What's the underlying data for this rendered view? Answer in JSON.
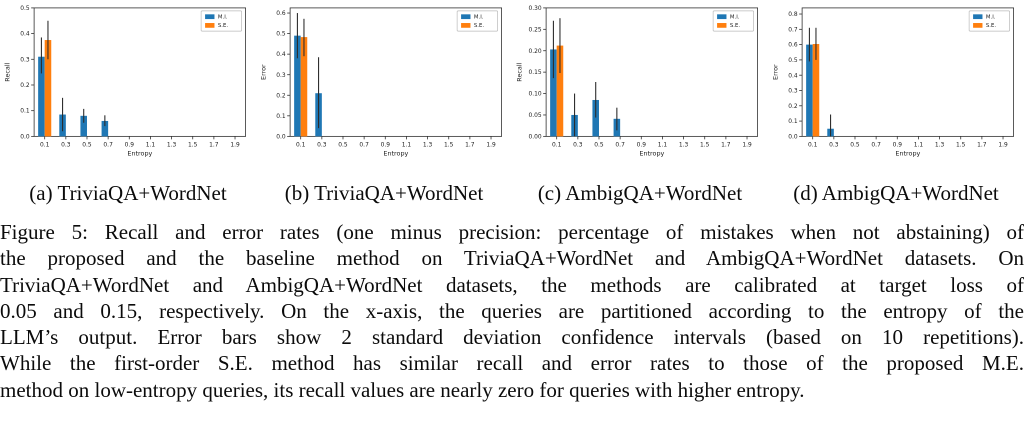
{
  "figure": {
    "subcaptions": [
      {
        "label": "(a) TriviaQA+WordNet"
      },
      {
        "label": "(b) TriviaQA+WordNet"
      },
      {
        "label": "(c) AmbigQA+WordNet"
      },
      {
        "label": "(d) AmbigQA+WordNet"
      }
    ],
    "caption_lines": [
      "Figure 5: Recall and error rates (one minus precision: percentage of mistakes when not abstaining) of",
      "the proposed and the baseline method on TriviaQA+WordNet and AmbigQA+WordNet datasets. On",
      "TriviaQA+WordNet and AmbigQA+WordNet datasets, the methods are calibrated at target loss of",
      "0.05 and 0.15, respectively. On the x-axis, the queries are partitioned according to the entropy of the",
      "LLM’s output. Error bars show 2 standard deviation confidence intervals (based on 10 repetitions).",
      "While the first-order S.E. method has similar recall and error rates to those of the proposed M.E.",
      "method on low-entropy queries, its recall values are nearly zero for queries with higher entropy."
    ]
  },
  "colors": {
    "mi_blue": "#1f77b4",
    "se_orange": "#ff7f0e",
    "error_bar": "#2b2b2b",
    "spine": "#2f2f2f"
  },
  "chart_data": [
    {
      "type": "bar",
      "title": "",
      "xlabel": "Entropy",
      "ylabel": "Recall",
      "categories": [
        "0.1",
        "0.3",
        "0.5",
        "0.7",
        "0.9",
        "1.1",
        "1.3",
        "1.5",
        "1.7",
        "1.9"
      ],
      "yticks": [
        "0.0",
        "0.1",
        "0.2",
        "0.3",
        "0.4",
        "0.5"
      ],
      "ylim": [
        0,
        0.5
      ],
      "grid": false,
      "legend_position": "upper-right",
      "series": [
        {
          "name": "M.I.",
          "color": "#1f77b4",
          "values": [
            0.31,
            0.085,
            0.08,
            0.06,
            0,
            0,
            0,
            0,
            0,
            0
          ],
          "errors": [
            [
              0.245,
              0.385
            ],
            [
              0.02,
              0.15
            ],
            [
              0.053,
              0.107
            ],
            [
              0.04,
              0.082
            ],
            null,
            null,
            null,
            null,
            null,
            null
          ]
        },
        {
          "name": "S.E.",
          "color": "#ff7f0e",
          "values": [
            0.375,
            0,
            0,
            0,
            0,
            0,
            0,
            0,
            0,
            0
          ],
          "errors": [
            [
              0.3,
              0.45
            ],
            null,
            null,
            null,
            null,
            null,
            null,
            null,
            null,
            null
          ]
        }
      ]
    },
    {
      "type": "bar",
      "title": "",
      "xlabel": "Entropy",
      "ylabel": "Error",
      "categories": [
        "0.1",
        "0.3",
        "0.5",
        "0.7",
        "0.9",
        "1.1",
        "1.3",
        "1.5",
        "1.7",
        "1.9"
      ],
      "yticks": [
        "0.0",
        "0.1",
        "0.2",
        "0.3",
        "0.4",
        "0.5",
        "0.6"
      ],
      "ylim": [
        0,
        0.625
      ],
      "grid": false,
      "legend_position": "upper-right",
      "series": [
        {
          "name": "M.I.",
          "color": "#1f77b4",
          "values": [
            0.49,
            0.21,
            0,
            0,
            0,
            0,
            0,
            0,
            0,
            0
          ],
          "errors": [
            [
              0.38,
              0.6
            ],
            [
              0.04,
              0.385
            ],
            null,
            null,
            null,
            null,
            null,
            null,
            null,
            null
          ]
        },
        {
          "name": "S.E.",
          "color": "#ff7f0e",
          "values": [
            0.483,
            0,
            0,
            0,
            0,
            0,
            0,
            0,
            0,
            0
          ],
          "errors": [
            [
              0.39,
              0.572
            ],
            null,
            null,
            null,
            null,
            null,
            null,
            null,
            null,
            null
          ]
        }
      ]
    },
    {
      "type": "bar",
      "title": "",
      "xlabel": "Entropy",
      "ylabel": "Recall",
      "categories": [
        "0.1",
        "0.3",
        "0.5",
        "0.7",
        "0.9",
        "1.1",
        "1.3",
        "1.5",
        "1.7",
        "1.9"
      ],
      "yticks": [
        "0.00",
        "0.05",
        "0.10",
        "0.15",
        "0.20",
        "0.25",
        "0.30"
      ],
      "ylim": [
        0,
        0.3
      ],
      "grid": false,
      "legend_position": "upper-right",
      "series": [
        {
          "name": "M.I.",
          "color": "#1f77b4",
          "values": [
            0.203,
            0.05,
            0.085,
            0.041,
            0,
            0,
            0,
            0,
            0,
            0
          ],
          "errors": [
            [
              0.136,
              0.27
            ],
            [
              0.0,
              0.1
            ],
            [
              0.044,
              0.127
            ],
            [
              0.014,
              0.067
            ],
            null,
            null,
            null,
            null,
            null,
            null
          ]
        },
        {
          "name": "S.E.",
          "color": "#ff7f0e",
          "values": [
            0.212,
            0,
            0,
            0,
            0,
            0,
            0,
            0,
            0,
            0
          ],
          "errors": [
            [
              0.148,
              0.276
            ],
            null,
            null,
            null,
            null,
            null,
            null,
            null,
            null,
            null
          ]
        }
      ]
    },
    {
      "type": "bar",
      "title": "",
      "xlabel": "Entropy",
      "ylabel": "Error",
      "categories": [
        "0.1",
        "0.3",
        "0.5",
        "0.7",
        "0.9",
        "1.1",
        "1.3",
        "1.5",
        "1.7",
        "1.9"
      ],
      "yticks": [
        "0.0",
        "0.1",
        "0.2",
        "0.3",
        "0.4",
        "0.5",
        "0.6",
        "0.7",
        "0.8"
      ],
      "ylim": [
        0,
        0.84
      ],
      "grid": false,
      "legend_position": "upper-right",
      "series": [
        {
          "name": "M.I.",
          "color": "#1f77b4",
          "values": [
            0.6,
            0.05,
            0,
            0,
            0,
            0,
            0,
            0,
            0,
            0
          ],
          "errors": [
            [
              0.49,
              0.71
            ],
            [
              0.0,
              0.143
            ],
            null,
            null,
            null,
            null,
            null,
            null,
            null,
            null
          ]
        },
        {
          "name": "S.E.",
          "color": "#ff7f0e",
          "values": [
            0.604,
            0,
            0,
            0,
            0,
            0,
            0,
            0,
            0,
            0
          ],
          "errors": [
            [
              0.5,
              0.71
            ],
            null,
            null,
            null,
            null,
            null,
            null,
            null,
            null,
            null
          ]
        }
      ]
    }
  ]
}
